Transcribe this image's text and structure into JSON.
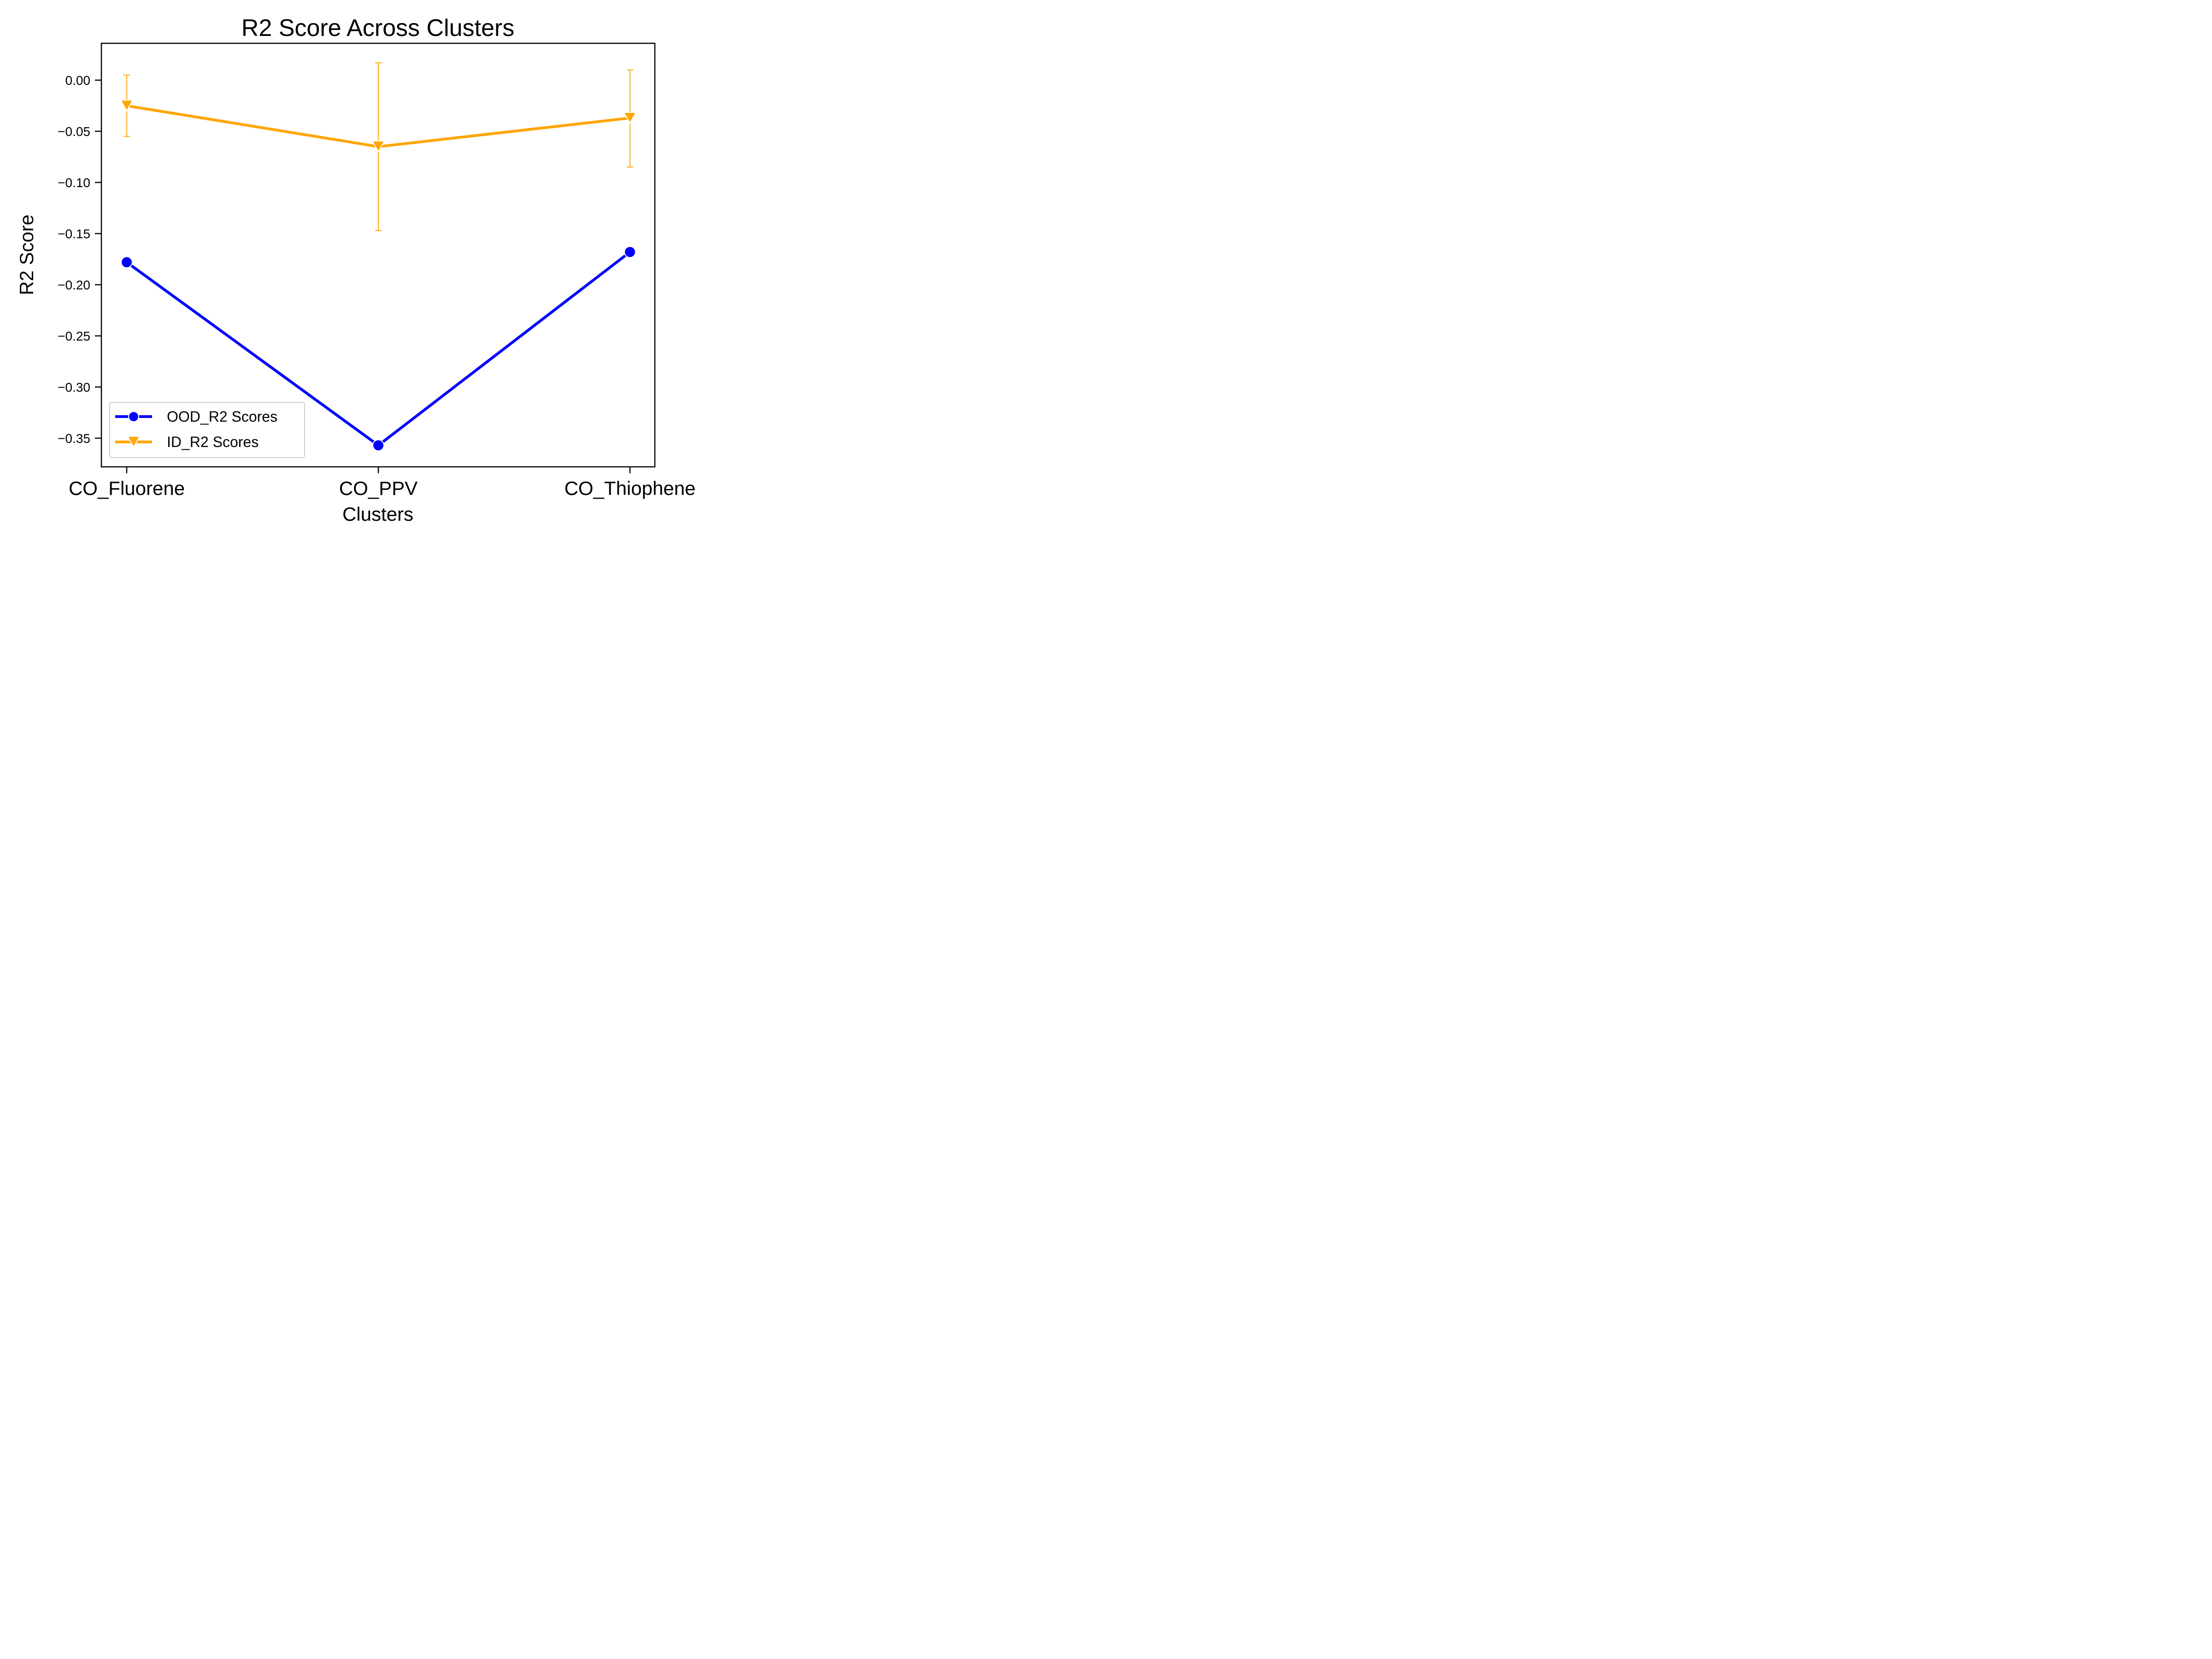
{
  "chart_data": {
    "type": "line",
    "title": "R2 Score Across Clusters",
    "xlabel": "Clusters",
    "ylabel": "R2 Score",
    "categories": [
      "CO_Fluorene",
      "CO_PPV",
      "CO_Thiophene"
    ],
    "ylim": [
      -0.378,
      0.036
    ],
    "yticks": [
      0.0,
      -0.05,
      -0.1,
      -0.15,
      -0.2,
      -0.25,
      -0.3,
      -0.35
    ],
    "ytick_labels": [
      "0.00",
      "−0.05",
      "−0.10",
      "−0.15",
      "−0.20",
      "−0.25",
      "−0.30",
      "−0.35"
    ],
    "grid": false,
    "legend_position": "lower-left",
    "series": [
      {
        "name": "OOD_R2 Scores",
        "color": "#0000ff",
        "marker": "circle",
        "values": [
          -0.178,
          -0.357,
          -0.168
        ]
      },
      {
        "name": "ID_R2 Scores",
        "color": "#ffa500",
        "marker": "triangle-down",
        "values": [
          -0.025,
          -0.065,
          -0.037
        ],
        "error_low": [
          -0.055,
          -0.147,
          -0.085
        ],
        "error_high": [
          0.005,
          0.017,
          0.01
        ]
      }
    ]
  }
}
